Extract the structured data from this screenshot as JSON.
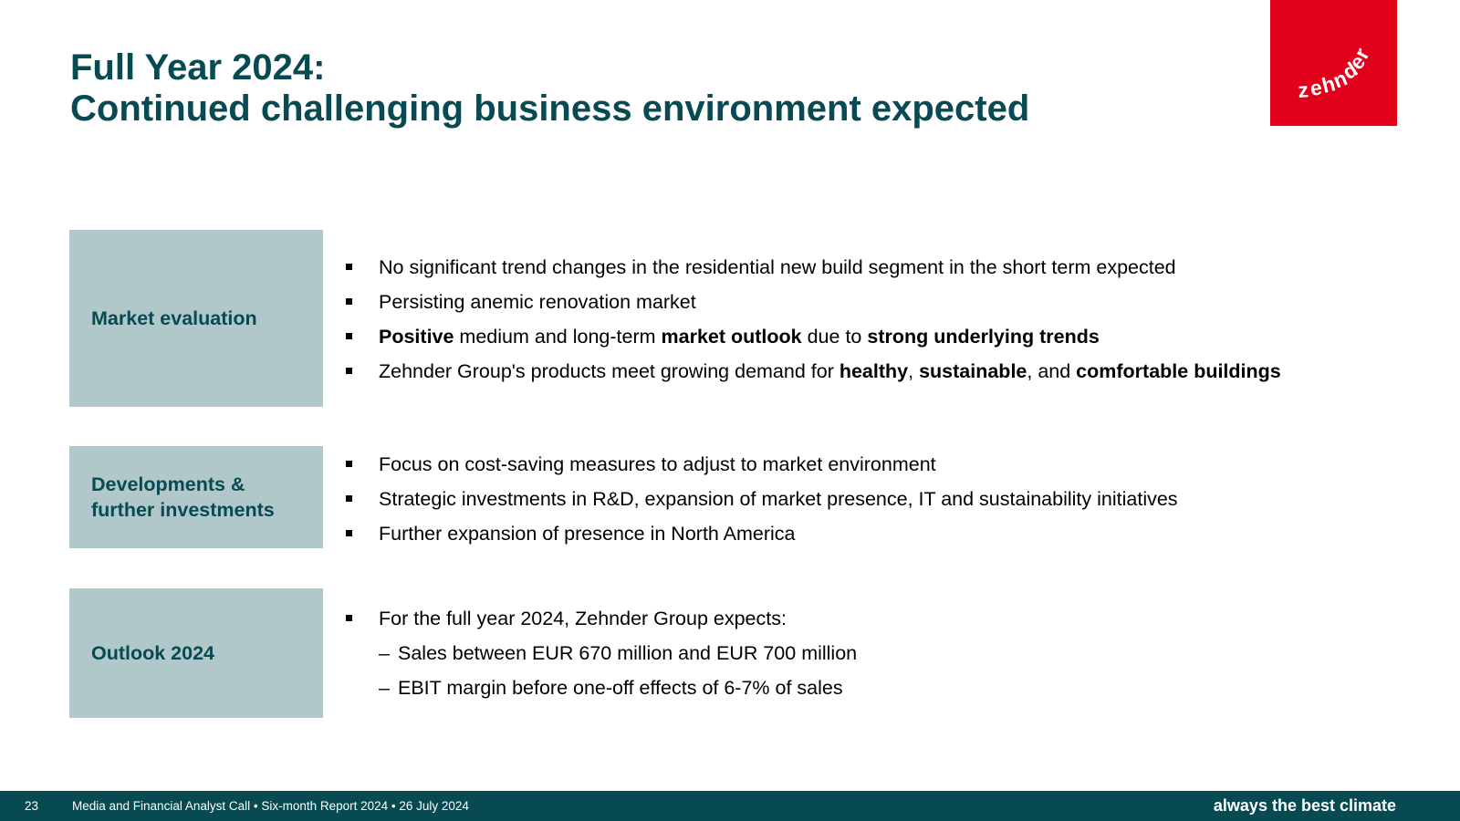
{
  "title": {
    "line1": "Full Year 2024:",
    "line2": "Continued challenging business environment expected"
  },
  "logo": {
    "text": "zehnder",
    "color": "#e2001a"
  },
  "colors": {
    "heading": "#074a52",
    "label_background": "#b1c8cb",
    "footer_background": "#074a52"
  },
  "sections": {
    "market": {
      "label": "Market evaluation",
      "bullets": [
        {
          "t1": "No significant trend changes in the residential new build segment in the short term expected"
        },
        {
          "t1": "Persisting anemic renovation market"
        },
        {
          "b1": "Positive",
          "t1": " medium and long-term ",
          "b2": "market outlook",
          "t2": " due to ",
          "b3": "strong underlying trends"
        },
        {
          "t1": "Zehnder Group's products meet growing demand for ",
          "b1": "healthy",
          "t2": ", ",
          "b2": "sustainable",
          "t3": ", and ",
          "b3": "comfortable buildings"
        }
      ]
    },
    "developments": {
      "label_line1": "Developments &",
      "label_line2": "further investments",
      "bullets": [
        "Focus on cost-saving measures to adjust to market environment",
        "Strategic investments in R&D, expansion of market presence, IT and sustainability initiatives",
        "Further expansion of presence in North America"
      ]
    },
    "outlook": {
      "label": "Outlook 2024",
      "bullet": "For the full year 2024, Zehnder Group expects:",
      "dash": "–",
      "subitems": [
        "Sales between EUR 670 million and EUR 700 million",
        "EBIT margin before one-off effects of 6-7% of sales"
      ]
    }
  },
  "footer": {
    "page_number": "23",
    "event": "Media and Financial Analyst Call • Six-month Report 2024 • 26 July 2024",
    "tagline": "always the best climate"
  }
}
